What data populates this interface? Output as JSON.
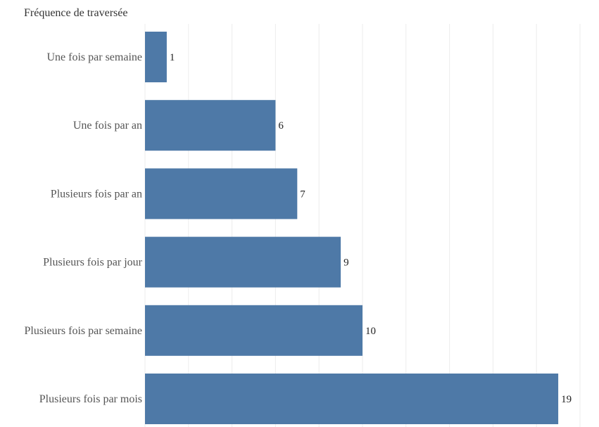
{
  "chart_data": {
    "type": "bar",
    "orientation": "horizontal",
    "title": "",
    "ylabel": "Fréquence de traversée",
    "xlabel": "",
    "categories": [
      "Une fois par semaine",
      "Une fois par an",
      "Plusieurs fois par an",
      "Plusieurs fois par jour",
      "Plusieurs fois par semaine",
      "Plusieurs fois par mois"
    ],
    "values": [
      1,
      6,
      7,
      9,
      10,
      19
    ],
    "xlim": [
      0,
      20
    ],
    "grid": true,
    "legend": "none",
    "colors": {
      "bar": "#4e79a7",
      "grid": "#ececec"
    }
  }
}
